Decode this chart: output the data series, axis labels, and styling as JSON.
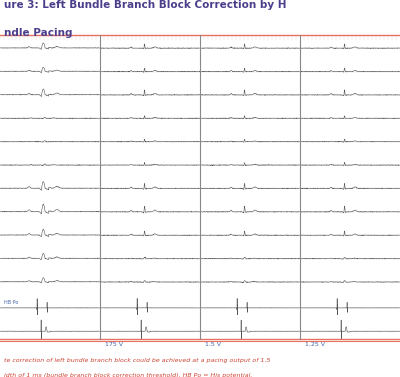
{
  "title_line1": "ure 3: Left Bundle Branch Block Correction by H",
  "title_line2": "ndle Pacing",
  "title_color": "#4B3F8C",
  "caption_line1": "te correction of left bundle branch block could be achieved at a pacing output of 1.5",
  "caption_line2": "idth of 1 ms (bundle branch block correction threshold). HB Po = His potential.",
  "caption_color": "#CC4433",
  "bg_color": "#FFFFFF",
  "grid_color": "#DDDDDD",
  "ecg_line_color": "#555555",
  "border_color": "#E87060",
  "segment_labels": [
    "175 V",
    "1.5 V",
    "1.25 V"
  ],
  "segment_label_color": "#4466AA",
  "hb_label": "HB Po",
  "hb_label_color": "#4466AA",
  "n_leads": 13,
  "n_segments": 4
}
